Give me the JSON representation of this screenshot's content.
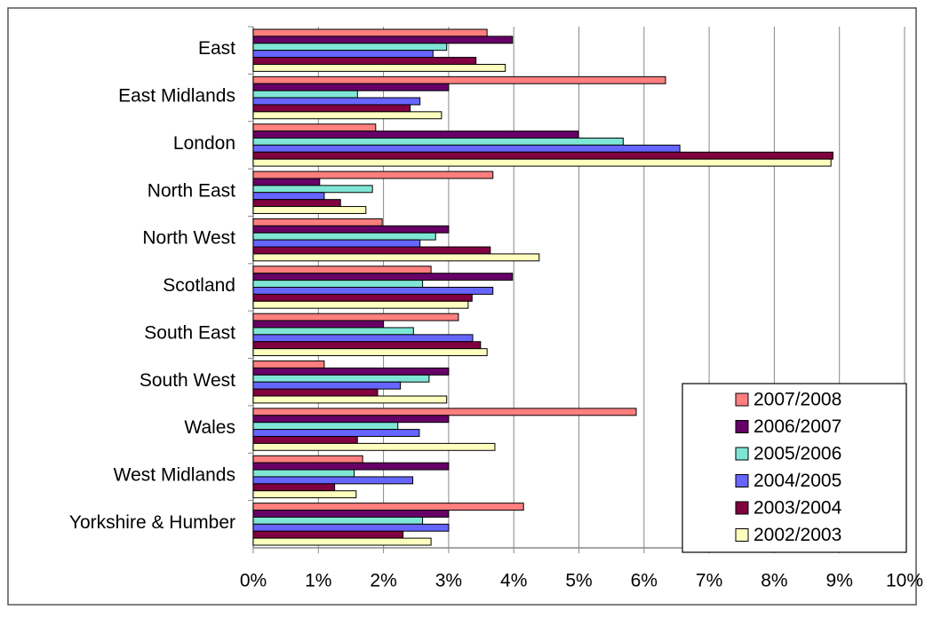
{
  "chart_data": {
    "type": "hbar",
    "categories": [
      "East",
      "East Midlands",
      "London",
      "North East",
      "North West",
      "Scotland",
      "South East",
      "South West",
      "Wales",
      "West Midlands",
      "Yorkshire & Humber"
    ],
    "series": [
      {
        "name": "2007/2008",
        "color": "#ff7f7f",
        "values": [
          3.59,
          6.33,
          1.88,
          3.68,
          1.98,
          2.73,
          3.15,
          1.09,
          5.88,
          1.68,
          4.15
        ]
      },
      {
        "name": "2006/2007",
        "color": "#660066",
        "values": [
          3.98,
          3.0,
          4.99,
          1.02,
          3.0,
          3.98,
          2.0,
          3.0,
          3.0,
          3.0,
          3.0
        ]
      },
      {
        "name": "2005/2006",
        "color": "#7fe6d6",
        "values": [
          2.97,
          1.6,
          5.68,
          1.83,
          2.8,
          2.6,
          2.46,
          2.7,
          2.22,
          1.55,
          2.6
        ]
      },
      {
        "name": "2004/2005",
        "color": "#6666ff",
        "values": [
          2.76,
          2.56,
          6.55,
          1.09,
          2.56,
          3.68,
          3.37,
          2.26,
          2.55,
          2.45,
          3.0
        ]
      },
      {
        "name": "2003/2004",
        "color": "#800040",
        "values": [
          3.42,
          2.41,
          8.9,
          1.34,
          3.64,
          3.36,
          3.49,
          1.91,
          1.6,
          1.25,
          2.3
        ]
      },
      {
        "name": "2002/2003",
        "color": "#ffffc0",
        "values": [
          3.87,
          2.89,
          8.87,
          1.73,
          4.39,
          3.3,
          3.59,
          2.97,
          3.71,
          1.58,
          2.73
        ]
      }
    ],
    "xlim": [
      0,
      10
    ],
    "xticks": [
      {
        "value": 0,
        "label": "0%"
      },
      {
        "value": 1,
        "label": "1%"
      },
      {
        "value": 2,
        "label": "2%"
      },
      {
        "value": 3,
        "label": "3%"
      },
      {
        "value": 4,
        "label": "4%"
      },
      {
        "value": 5,
        "label": "5%"
      },
      {
        "value": 6,
        "label": "6%"
      },
      {
        "value": 7,
        "label": "7%"
      },
      {
        "value": 8,
        "label": "8%"
      },
      {
        "value": 9,
        "label": "9%"
      },
      {
        "value": 10,
        "label": "10%"
      }
    ],
    "grid": true,
    "legend": "lower right"
  }
}
